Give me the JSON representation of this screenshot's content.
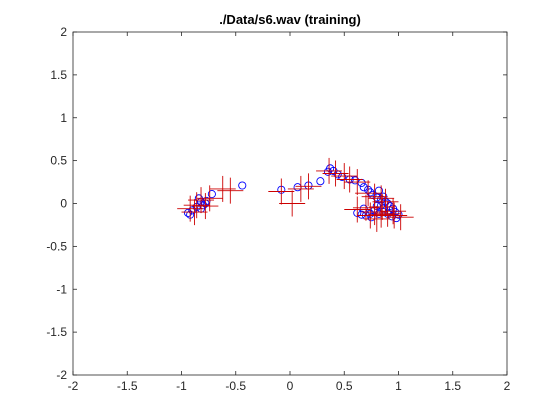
{
  "chart_data": {
    "type": "scatter",
    "title": "./Data/s6.wav (training)",
    "xlabel": "",
    "ylabel": "",
    "xlim": [
      -2,
      2
    ],
    "ylim": [
      -2,
      2
    ],
    "xticks": [
      -2,
      -1.5,
      -1,
      -0.5,
      0,
      0.5,
      1,
      1.5,
      2
    ],
    "yticks": [
      -2,
      -1.5,
      -1,
      -0.5,
      0,
      0.5,
      1,
      1.5,
      2
    ],
    "xtick_labels": [
      "-2",
      "-1.5",
      "-1",
      "-0.5",
      "0",
      "0.5",
      "1",
      "1.5",
      "2"
    ],
    "ytick_labels": [
      "-2",
      "-1.5",
      "-1",
      "-0.5",
      "0",
      "0.5",
      "1",
      "1.5",
      "2"
    ],
    "grid": false,
    "box": true,
    "series": [
      {
        "marker": "circle",
        "color": "#0000ff",
        "points": [
          [
            -0.94,
            -0.11
          ],
          [
            -0.92,
            -0.13
          ],
          [
            -0.9,
            -0.08
          ],
          [
            -0.86,
            -0.04
          ],
          [
            -0.84,
            0.06
          ],
          [
            -0.82,
            0.02
          ],
          [
            -0.8,
            -0.02
          ],
          [
            -0.78,
            0.0
          ],
          [
            -0.77,
            0.03
          ],
          [
            -0.82,
            -0.06
          ],
          [
            -0.72,
            0.11
          ],
          [
            -0.44,
            0.21
          ],
          [
            -0.08,
            0.16
          ],
          [
            0.07,
            0.19
          ],
          [
            0.17,
            0.21
          ],
          [
            0.28,
            0.26
          ],
          [
            0.35,
            0.37
          ],
          [
            0.37,
            0.41
          ],
          [
            0.4,
            0.38
          ],
          [
            0.44,
            0.34
          ],
          [
            0.48,
            0.31
          ],
          [
            0.55,
            0.28
          ],
          [
            0.6,
            0.27
          ],
          [
            0.66,
            0.24
          ],
          [
            0.68,
            0.19
          ],
          [
            0.72,
            0.16
          ],
          [
            0.74,
            0.13
          ],
          [
            0.76,
            0.1
          ],
          [
            0.8,
            0.07
          ],
          [
            0.82,
            0.15
          ],
          [
            0.84,
            0.05
          ],
          [
            0.86,
            0.08
          ],
          [
            0.88,
            0.02
          ],
          [
            0.9,
            0.0
          ],
          [
            0.92,
            -0.03
          ],
          [
            0.95,
            -0.06
          ],
          [
            0.97,
            -0.1
          ],
          [
            1.0,
            -0.13
          ],
          [
            0.98,
            -0.17
          ],
          [
            0.94,
            -0.15
          ],
          [
            0.9,
            -0.12
          ],
          [
            0.86,
            -0.1
          ],
          [
            0.82,
            -0.12
          ],
          [
            0.78,
            -0.08
          ],
          [
            0.74,
            -0.12
          ],
          [
            0.7,
            -0.14
          ],
          [
            0.66,
            -0.13
          ],
          [
            0.62,
            -0.11
          ],
          [
            0.68,
            -0.06
          ],
          [
            0.8,
            -0.03
          ],
          [
            0.86,
            -0.06
          ],
          [
            0.92,
            -0.08
          ],
          [
            0.75,
            -0.16
          ],
          [
            0.84,
            -0.02
          ]
        ]
      },
      {
        "marker": "cross",
        "color": "#cc0000",
        "points": [
          [
            -0.92,
            -0.06
          ],
          [
            -0.86,
            -0.02
          ],
          [
            -0.82,
            0.04
          ],
          [
            -0.78,
            -0.03
          ],
          [
            -0.74,
            0.06
          ],
          [
            -0.88,
            -0.1
          ],
          [
            -0.62,
            0.17
          ],
          [
            -0.55,
            0.15
          ],
          [
            -0.08,
            0.14
          ],
          [
            0.02,
            0.0
          ],
          [
            0.1,
            0.17
          ],
          [
            0.17,
            0.2
          ],
          [
            0.36,
            0.38
          ],
          [
            0.42,
            0.35
          ],
          [
            0.5,
            0.32
          ],
          [
            0.55,
            0.28
          ],
          [
            0.62,
            0.25
          ],
          [
            0.72,
            0.12
          ],
          [
            0.78,
            0.08
          ],
          [
            0.84,
            0.06
          ],
          [
            0.88,
            0.02
          ],
          [
            0.95,
            -0.09
          ],
          [
            1.02,
            -0.16
          ],
          [
            0.9,
            -0.12
          ],
          [
            0.84,
            -0.13
          ],
          [
            0.78,
            -0.1
          ],
          [
            0.74,
            -0.14
          ],
          [
            0.7,
            -0.05
          ],
          [
            0.62,
            -0.07
          ],
          [
            0.85,
            -0.04
          ],
          [
            0.8,
            -0.18
          ],
          [
            0.96,
            -0.14
          ]
        ]
      }
    ]
  }
}
